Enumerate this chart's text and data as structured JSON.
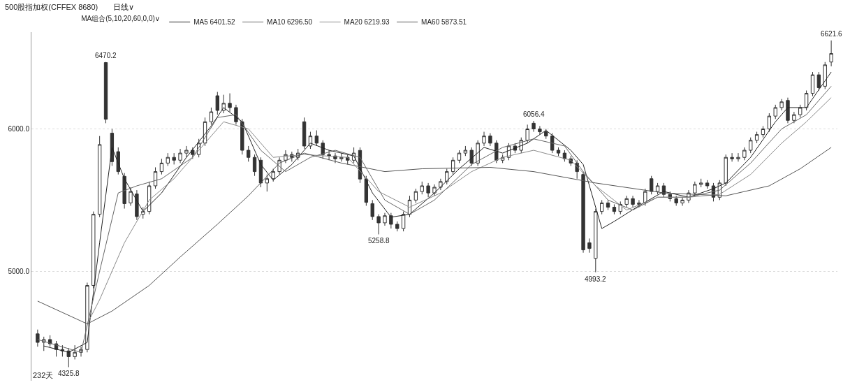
{
  "chart_data": {
    "type": "candlestick",
    "title": "500股指加权(CFFEX 8680)",
    "subtitle": "日线∨",
    "legend_title": "MA组合(5,10,20,60,0,0)∨",
    "legend": "top left",
    "grid": "y",
    "tick_labels": "y",
    "ylim": [
      4230,
      6680
    ],
    "yticks": [
      {
        "value": 5000,
        "label": "5000.0"
      },
      {
        "value": 6000,
        "label": "6000.0"
      }
    ],
    "annotations": [
      {
        "text": "6470.2",
        "y": 6470.2
      },
      {
        "text": "5258.8",
        "y": 5258.8
      },
      {
        "text": "6056.4",
        "y": 6056.4
      },
      {
        "text": "4993.2",
        "y": 4993.2
      },
      {
        "text": "6621.6",
        "y": 6621.6
      },
      {
        "text": "4325.8",
        "y": 4325.8
      },
      "232天"
    ],
    "categories": [
      null,
      null,
      null,
      null,
      null,
      null,
      null,
      null,
      null,
      null,
      null,
      null,
      null,
      null,
      null,
      null,
      null,
      null,
      null,
      null,
      null,
      null,
      null,
      null,
      null,
      null,
      null,
      null,
      null,
      null,
      null,
      null,
      null,
      null,
      null,
      null,
      null,
      null,
      null,
      null,
      null,
      null,
      null,
      null,
      null,
      null,
      null,
      null,
      null,
      null,
      null,
      null,
      null,
      null,
      null,
      null,
      null,
      null,
      null,
      null,
      null,
      null,
      null,
      null,
      null,
      null,
      null,
      null,
      null,
      null,
      null,
      null,
      null,
      null,
      null,
      null,
      null,
      null,
      null,
      null,
      null,
      null,
      null,
      null,
      null,
      null,
      null,
      null,
      null,
      null,
      null,
      null,
      null,
      null,
      null,
      null,
      null,
      null,
      null,
      null,
      null,
      null,
      null,
      null,
      null,
      null,
      null,
      null,
      null,
      null,
      null,
      null,
      null,
      null,
      null,
      null,
      null,
      null,
      null,
      null,
      null,
      null,
      null,
      null,
      null,
      null,
      null,
      null,
      null
    ],
    "ohlc": [
      [
        4560,
        4590,
        4470,
        4500
      ],
      [
        4500,
        4540,
        4440,
        4520
      ],
      [
        4520,
        4550,
        4470,
        4490
      ],
      [
        4490,
        4510,
        4400,
        4450
      ],
      [
        4450,
        4480,
        4400,
        4440
      ],
      [
        4440,
        4460,
        4325.8,
        4400
      ],
      [
        4400,
        4480,
        4380,
        4430
      ],
      [
        4430,
        4470,
        4400,
        4450
      ],
      [
        4450,
        4920,
        4430,
        4900
      ],
      [
        4900,
        5420,
        4880,
        5400
      ],
      [
        5400,
        5950,
        5380,
        5890
      ],
      [
        6466,
        6470.2,
        6040,
        6068
      ],
      [
        5970,
        6000,
        5740,
        5770
      ],
      [
        5840,
        5870,
        5680,
        5700
      ],
      [
        5667,
        5690,
        5440,
        5475
      ],
      [
        5480,
        5590,
        5460,
        5560
      ],
      [
        5543,
        5570,
        5360,
        5384
      ],
      [
        5400,
        5450,
        5370,
        5420
      ],
      [
        5420,
        5630,
        5400,
        5600
      ],
      [
        5600,
        5730,
        5580,
        5700
      ],
      [
        5700,
        5790,
        5680,
        5760
      ],
      [
        5760,
        5830,
        5740,
        5800
      ],
      [
        5800,
        5830,
        5750,
        5780
      ],
      [
        5780,
        5860,
        5760,
        5830
      ],
      [
        5830,
        5880,
        5800,
        5850
      ],
      [
        5850,
        5870,
        5790,
        5820
      ],
      [
        5820,
        5930,
        5800,
        5900
      ],
      [
        5900,
        6080,
        5880,
        6050
      ],
      [
        6050,
        6150,
        6030,
        6120
      ],
      [
        6233,
        6260,
        6100,
        6130
      ],
      [
        6130,
        6240,
        6110,
        6180
      ],
      [
        6180,
        6250,
        6120,
        6150
      ],
      [
        6150,
        6170,
        6030,
        6050
      ],
      [
        6050,
        6070,
        5820,
        5850
      ],
      [
        5850,
        5880,
        5770,
        5800
      ],
      [
        5800,
        5820,
        5670,
        5700
      ],
      [
        5780,
        5800,
        5590,
        5620
      ],
      [
        5620,
        5680,
        5560,
        5650
      ],
      [
        5650,
        5720,
        5630,
        5700
      ],
      [
        5700,
        5800,
        5680,
        5780
      ],
      [
        5780,
        5850,
        5760,
        5820
      ],
      [
        5820,
        5840,
        5770,
        5800
      ],
      [
        5800,
        5860,
        5780,
        5830
      ],
      [
        6050,
        6080,
        5860,
        5880
      ],
      [
        5880,
        5980,
        5860,
        5950
      ],
      [
        5950,
        5990,
        5880,
        5900
      ],
      [
        5900,
        5920,
        5790,
        5820
      ],
      [
        5820,
        5850,
        5780,
        5810
      ],
      [
        5810,
        5830,
        5760,
        5790
      ],
      [
        5790,
        5830,
        5770,
        5800
      ],
      [
        5800,
        5820,
        5750,
        5780
      ],
      [
        5780,
        5870,
        5760,
        5830
      ],
      [
        5849,
        5870,
        5620,
        5648
      ],
      [
        5648,
        5670,
        5460,
        5484
      ],
      [
        5475,
        5500,
        5360,
        5384
      ],
      [
        5384,
        5400,
        5258.8,
        5340
      ],
      [
        5340,
        5410,
        5320,
        5390
      ],
      [
        5390,
        5410,
        5300,
        5330
      ],
      [
        5330,
        5350,
        5280,
        5300
      ],
      [
        5300,
        5420,
        5280,
        5400
      ],
      [
        5400,
        5530,
        5380,
        5500
      ],
      [
        5500,
        5580,
        5480,
        5560
      ],
      [
        5560,
        5630,
        5540,
        5600
      ],
      [
        5600,
        5620,
        5520,
        5550
      ],
      [
        5550,
        5610,
        5530,
        5590
      ],
      [
        5590,
        5650,
        5570,
        5630
      ],
      [
        5630,
        5720,
        5610,
        5700
      ],
      [
        5700,
        5800,
        5680,
        5780
      ],
      [
        5780,
        5850,
        5760,
        5830
      ],
      [
        5830,
        5880,
        5810,
        5850
      ],
      [
        5850,
        5870,
        5740,
        5760
      ],
      [
        5760,
        5920,
        5740,
        5900
      ],
      [
        5900,
        5980,
        5880,
        5950
      ],
      [
        5950,
        5970,
        5880,
        5900
      ],
      [
        5900,
        5920,
        5760,
        5780
      ],
      [
        5780,
        5820,
        5760,
        5800
      ],
      [
        5800,
        5900,
        5780,
        5880
      ],
      [
        5880,
        5900,
        5830,
        5850
      ],
      [
        5850,
        5940,
        5830,
        5920
      ],
      [
        5920,
        6030,
        5900,
        6000
      ],
      [
        6040,
        6056.4,
        5980,
        6000
      ],
      [
        6000,
        6020,
        5960,
        5980
      ],
      [
        5980,
        6000,
        5930,
        5950
      ],
      [
        5950,
        5970,
        5830,
        5850
      ],
      [
        5850,
        5870,
        5810,
        5830
      ],
      [
        5830,
        5850,
        5770,
        5790
      ],
      [
        5790,
        5810,
        5740,
        5760
      ],
      [
        5760,
        5780,
        5650,
        5700
      ],
      [
        5680,
        5700,
        5130,
        5150
      ],
      [
        5200,
        5230,
        5130,
        5160
      ],
      [
        5090,
        5440,
        4993.2,
        5420
      ],
      [
        5420,
        5500,
        5400,
        5480
      ],
      [
        5480,
        5500,
        5430,
        5450
      ],
      [
        5450,
        5470,
        5400,
        5420
      ],
      [
        5420,
        5490,
        5400,
        5470
      ],
      [
        5470,
        5530,
        5450,
        5510
      ],
      [
        5510,
        5530,
        5450,
        5470
      ],
      [
        5470,
        5500,
        5450,
        5480
      ],
      [
        5480,
        5580,
        5460,
        5560
      ],
      [
        5650,
        5670,
        5540,
        5560
      ],
      [
        5560,
        5620,
        5540,
        5600
      ],
      [
        5600,
        5620,
        5520,
        5540
      ],
      [
        5540,
        5560,
        5490,
        5510
      ],
      [
        5510,
        5530,
        5460,
        5480
      ],
      [
        5480,
        5520,
        5460,
        5500
      ],
      [
        5500,
        5570,
        5480,
        5550
      ],
      [
        5550,
        5630,
        5530,
        5610
      ],
      [
        5610,
        5650,
        5590,
        5620
      ],
      [
        5620,
        5640,
        5580,
        5600
      ],
      [
        5600,
        5620,
        5490,
        5520
      ],
      [
        5520,
        5640,
        5500,
        5620
      ],
      [
        5620,
        5820,
        5600,
        5800
      ],
      [
        5800,
        5830,
        5770,
        5790
      ],
      [
        5790,
        5830,
        5770,
        5800
      ],
      [
        5800,
        5870,
        5780,
        5850
      ],
      [
        5850,
        5940,
        5830,
        5920
      ],
      [
        5920,
        5980,
        5900,
        5960
      ],
      [
        5960,
        6020,
        5940,
        6000
      ],
      [
        6000,
        6110,
        5980,
        6090
      ],
      [
        6090,
        6170,
        6070,
        6150
      ],
      [
        6150,
        6210,
        6130,
        6190
      ],
      [
        6200,
        6220,
        6040,
        6060
      ],
      [
        6060,
        6120,
        6040,
        6100
      ],
      [
        6100,
        6170,
        6080,
        6150
      ],
      [
        6150,
        6270,
        6130,
        6250
      ],
      [
        6250,
        6400,
        6230,
        6380
      ],
      [
        6380,
        6400,
        6270,
        6290
      ],
      [
        6300,
        6470,
        6280,
        6450
      ],
      [
        6470,
        6621.6,
        6440,
        6530
      ]
    ],
    "series": [
      {
        "name": "MA5 6401.52",
        "type": "line",
        "color": "#222222",
        "values": [
          null,
          4475,
          null,
          null,
          null,
          4430,
          null,
          null,
          4500,
          null,
          5200,
          null,
          5870,
          null,
          5650,
          null,
          null,
          5420,
          null,
          null,
          5550,
          null,
          null,
          null,
          5800,
          null,
          null,
          null,
          6020,
          null,
          6150,
          null,
          null,
          6050,
          null,
          null,
          5750,
          null,
          5640,
          null,
          null,
          5750,
          null,
          null,
          5900,
          null,
          null,
          5850,
          null,
          null,
          null,
          5810,
          null,
          null,
          5550,
          null,
          null,
          5380,
          null,
          null,
          5400,
          null,
          null,
          null,
          5550,
          null,
          null,
          null,
          5720,
          null,
          null,
          null,
          5870,
          null,
          null,
          5830,
          null,
          null,
          null,
          5900,
          null,
          null,
          5990,
          null,
          null,
          null,
          5850,
          null,
          5750,
          null,
          null,
          5300,
          null,
          5350,
          null,
          null,
          null,
          5460,
          null,
          null,
          null,
          5560,
          null,
          null,
          null,
          5520,
          null,
          null,
          null,
          5580,
          null,
          5620,
          null,
          null,
          null,
          5800,
          null,
          null,
          null,
          6050,
          null,
          6150,
          null,
          null,
          6150,
          null,
          null,
          null,
          6400
        ]
      },
      {
        "name": "MA10 6296.50",
        "type": "line",
        "color": "#666666",
        "values": [
          4520,
          null,
          null,
          null,
          null,
          null,
          null,
          4430,
          null,
          null,
          5000,
          null,
          null,
          5550,
          null,
          null,
          5600,
          null,
          null,
          null,
          5650,
          null,
          null,
          null,
          null,
          5800,
          null,
          null,
          null,
          6080,
          null,
          null,
          6100,
          null,
          null,
          null,
          5850,
          null,
          null,
          null,
          5700,
          null,
          null,
          null,
          5800,
          null,
          null,
          null,
          5850,
          null,
          null,
          null,
          5800,
          null,
          null,
          null,
          5500,
          null,
          null,
          null,
          5400,
          null,
          null,
          null,
          5500,
          null,
          null,
          null,
          null,
          null,
          5750,
          null,
          null,
          null,
          null,
          5870,
          null,
          null,
          null,
          null,
          5930,
          null,
          null,
          null,
          null,
          5880,
          null,
          null,
          5700,
          null,
          null,
          null,
          5500,
          null,
          null,
          null,
          5430,
          null,
          null,
          null,
          5520,
          null,
          null,
          null,
          null,
          5520,
          null,
          null,
          null,
          null,
          5570,
          null,
          null,
          null,
          null,
          5760,
          null,
          null,
          null,
          null,
          6000,
          null,
          null,
          null,
          6100,
          null,
          null,
          null,
          6300
        ]
      },
      {
        "name": "MA20 6219.93",
        "type": "line",
        "color": "#8a8a8a",
        "values": [
          null,
          null,
          null,
          null,
          null,
          null,
          null,
          null,
          4630,
          null,
          4800,
          null,
          null,
          null,
          5200,
          null,
          null,
          null,
          5500,
          null,
          null,
          null,
          5650,
          null,
          null,
          null,
          null,
          5900,
          null,
          null,
          6050,
          null,
          null,
          null,
          6000,
          null,
          null,
          null,
          5800,
          null,
          null,
          null,
          null,
          5820,
          null,
          null,
          null,
          null,
          null,
          null,
          5800,
          null,
          null,
          null,
          null,
          5560,
          null,
          null,
          null,
          null,
          5450,
          null,
          null,
          null,
          null,
          5550,
          null,
          null,
          null,
          null,
          5700,
          null,
          null,
          null,
          null,
          5800,
          null,
          null,
          null,
          null,
          5850,
          null,
          null,
          null,
          null,
          null,
          5780,
          null,
          null,
          null,
          5600,
          null,
          null,
          null,
          null,
          5430,
          null,
          null,
          null,
          null,
          5520,
          null,
          null,
          null,
          null,
          5520,
          null,
          null,
          null,
          null,
          5540,
          null,
          null,
          null,
          null,
          5680,
          null,
          null,
          null,
          null,
          5900,
          null,
          null,
          null,
          6050,
          null,
          null,
          null,
          6220
        ]
      },
      {
        "name": "MA60 5873.51",
        "type": "line",
        "color": "#555555",
        "values": [
          4790,
          null,
          null,
          null,
          null,
          null,
          null,
          null,
          4630,
          null,
          null,
          null,
          4720,
          null,
          null,
          null,
          null,
          null,
          4900,
          null,
          null,
          null,
          null,
          5100,
          null,
          null,
          null,
          null,
          null,
          5330,
          null,
          null,
          null,
          null,
          5530,
          null,
          null,
          null,
          null,
          5760,
          null,
          null,
          null,
          5830,
          null,
          null,
          null,
          null,
          null,
          5760,
          null,
          null,
          null,
          null,
          null,
          null,
          5700,
          null,
          null,
          null,
          null,
          null,
          5720,
          null,
          null,
          null,
          null,
          null,
          null,
          null,
          null,
          null,
          null,
          5730,
          null,
          null,
          null,
          null,
          null,
          null,
          5700,
          null,
          null,
          null,
          null,
          null,
          null,
          null,
          null,
          null,
          5620,
          null,
          null,
          null,
          null,
          null,
          null,
          null,
          null,
          null,
          null,
          5550,
          null,
          null,
          null,
          null,
          null,
          null,
          null,
          null,
          null,
          5530,
          null,
          null,
          null,
          null,
          null,
          null,
          5600,
          null,
          null,
          null,
          null,
          5720,
          null,
          null,
          null,
          null,
          5870
        ]
      }
    ]
  }
}
